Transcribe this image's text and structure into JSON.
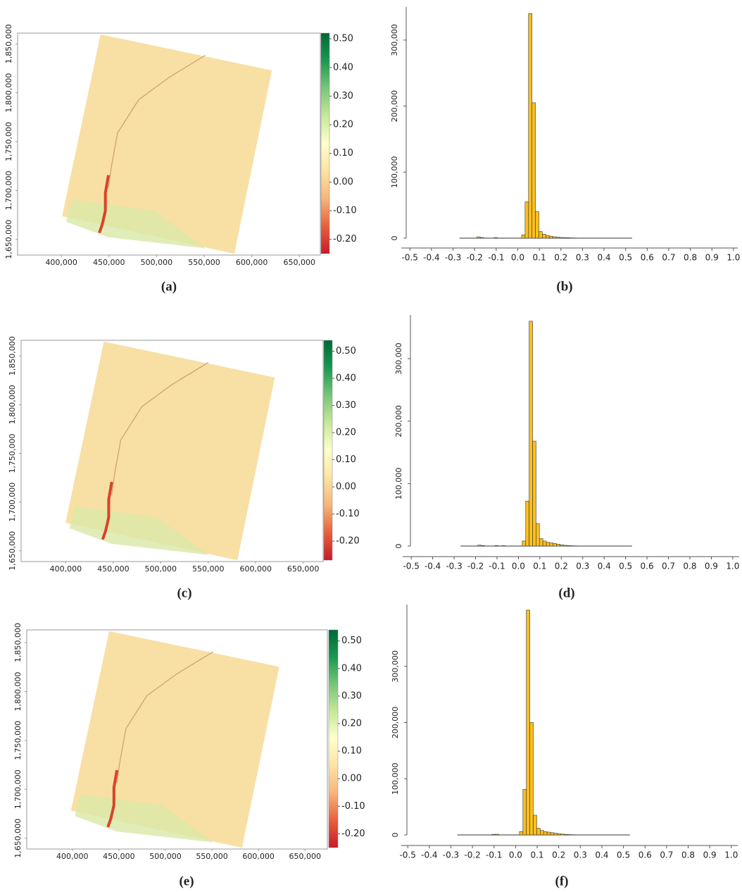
{
  "chart_data": [
    {
      "type": "map",
      "label": "(a)",
      "xlim": [
        354000,
        672000
      ],
      "ylim": [
        1634000,
        1861000
      ],
      "xticks": [
        {
          "value": 400000,
          "label": "400,000"
        },
        {
          "value": 450000,
          "label": "450,000"
        },
        {
          "value": 500000,
          "label": "500,000"
        },
        {
          "value": 550000,
          "label": "550,000"
        },
        {
          "value": 600000,
          "label": "600,000"
        },
        {
          "value": 650000,
          "label": "650,000"
        }
      ],
      "yticks": [
        {
          "value": 1650000,
          "label": "1,650,000"
        },
        {
          "value": 1700000,
          "label": "1,700,000"
        },
        {
          "value": 1750000,
          "label": "1,750,000"
        },
        {
          "value": 1800000,
          "label": "1,800,000"
        },
        {
          "value": 1850000,
          "label": "1,850,000"
        }
      ],
      "clim": [
        -0.25,
        0.52
      ],
      "cticks": [
        {
          "value": -0.2,
          "label": "-0.20"
        },
        {
          "value": -0.1,
          "label": "-0.10"
        },
        {
          "value": 0,
          "label": "0.00"
        },
        {
          "value": 0.1,
          "label": "0.10"
        },
        {
          "value": 0.2,
          "label": "0.20"
        },
        {
          "value": 0.3,
          "label": "0.30"
        },
        {
          "value": 0.4,
          "label": "0.40"
        },
        {
          "value": 0.5,
          "label": "0.50"
        }
      ],
      "colormap": [
        "#c51b2b",
        "#e8603c",
        "#f6b57a",
        "#fde3a4",
        "#ffffcc",
        "#c7e89a",
        "#78c679",
        "#1a9850",
        "#006837"
      ]
    },
    {
      "type": "histogram",
      "label": "(b)",
      "color": "#fcbf1e",
      "xlim": [
        -0.54,
        1.02
      ],
      "ylim": [
        0,
        350000
      ],
      "xticks": [
        -0.5,
        -0.4,
        -0.3,
        -0.2,
        -0.1,
        {
          "value": 0,
          "label": "0.0"
        },
        0.1,
        0.2,
        0.3,
        0.4,
        0.5,
        0.6,
        0.7,
        0.8,
        0.9,
        {
          "value": 1,
          "label": "1.0"
        }
      ],
      "yticks": [
        0,
        {
          "value": 100000,
          "label": "100,000"
        },
        {
          "value": 200000,
          "label": "200,000"
        },
        {
          "value": 300000,
          "label": "300,000"
        }
      ],
      "bins": [
        -0.27,
        -0.254,
        -0.238,
        -0.222,
        -0.206,
        -0.19,
        -0.174,
        -0.158,
        -0.142,
        -0.126,
        -0.11,
        -0.094,
        -0.078,
        -0.062,
        -0.046,
        -0.03,
        -0.014,
        0.002,
        0.018,
        0.034,
        0.05,
        0.066,
        0.082,
        0.098,
        0.114,
        0.13,
        0.146,
        0.162,
        0.178,
        0.194,
        0.21,
        0.226,
        0.242,
        0.258,
        0.274,
        0.29,
        0.306,
        0.322,
        0.338,
        0.354,
        0.37,
        0.386,
        0.402,
        0.418,
        0.434,
        0.45,
        0.466,
        0.482,
        0.498,
        0.514,
        0.53
      ],
      "values": [
        0,
        0,
        0,
        0,
        0,
        2000,
        1000,
        0,
        0,
        0,
        800,
        0,
        0,
        0,
        0,
        0,
        0,
        0,
        5000,
        55000,
        340000,
        205000,
        40000,
        10000,
        6000,
        4000,
        3000,
        2000,
        1500,
        1000,
        800,
        600,
        400,
        300,
        200,
        0,
        0,
        0,
        0,
        0,
        0,
        0,
        0,
        0,
        0,
        0,
        0,
        0,
        0,
        0
      ]
    },
    {
      "type": "map",
      "label": "(c)",
      "xlim": [
        353000,
        671000
      ],
      "ylim": [
        1639000,
        1866000
      ],
      "xticks": [
        {
          "value": 400000,
          "label": "400,000"
        },
        {
          "value": 450000,
          "label": "450,000"
        },
        {
          "value": 500000,
          "label": "500,000"
        },
        {
          "value": 550000,
          "label": "550,000"
        },
        {
          "value": 600000,
          "label": "600,000"
        },
        {
          "value": 650000,
          "label": "650,000"
        }
      ],
      "yticks": [
        {
          "value": 1650000,
          "label": "1,650,000"
        },
        {
          "value": 1700000,
          "label": "1,700,000"
        },
        {
          "value": 1750000,
          "label": "1,750,000"
        },
        {
          "value": 1800000,
          "label": "1,800,000"
        },
        {
          "value": 1850000,
          "label": "1,850,000"
        }
      ],
      "clim": [
        -0.27,
        0.54
      ],
      "cticks": [
        {
          "value": -0.2,
          "label": "-0.20"
        },
        {
          "value": -0.1,
          "label": "-0.10"
        },
        {
          "value": 0,
          "label": "0.00"
        },
        {
          "value": 0.1,
          "label": "0.10"
        },
        {
          "value": 0.2,
          "label": "0.20"
        },
        {
          "value": 0.3,
          "label": "0.30"
        },
        {
          "value": 0.4,
          "label": "0.40"
        },
        {
          "value": 0.5,
          "label": "0.50"
        }
      ],
      "colormap": [
        "#c51b2b",
        "#e8603c",
        "#f6b57a",
        "#fde3a4",
        "#ffffcc",
        "#c7e89a",
        "#78c679",
        "#1a9850",
        "#006837"
      ]
    },
    {
      "type": "histogram",
      "label": "(d)",
      "color": "#fcbf1e",
      "xlim": [
        -0.54,
        1.03
      ],
      "ylim": [
        0,
        370000
      ],
      "xticks": [
        -0.5,
        -0.4,
        -0.3,
        -0.2,
        -0.1,
        {
          "value": 0,
          "label": "0.0"
        },
        0.1,
        0.2,
        0.3,
        0.4,
        0.5,
        0.6,
        0.7,
        0.8,
        0.9,
        {
          "value": 1,
          "label": "1.0"
        }
      ],
      "yticks": [
        0,
        {
          "value": 100000,
          "label": "100,000"
        },
        {
          "value": 200000,
          "label": "200,000"
        },
        {
          "value": 300000,
          "label": "300,000"
        }
      ],
      "bins": [
        -0.27,
        -0.254,
        -0.238,
        -0.222,
        -0.206,
        -0.19,
        -0.174,
        -0.158,
        -0.142,
        -0.126,
        -0.11,
        -0.094,
        -0.078,
        -0.062,
        -0.046,
        -0.03,
        -0.014,
        0.002,
        0.018,
        0.034,
        0.05,
        0.066,
        0.082,
        0.098,
        0.114,
        0.13,
        0.146,
        0.162,
        0.178,
        0.194,
        0.21,
        0.226,
        0.242,
        0.258,
        0.274,
        0.29,
        0.306,
        0.322,
        0.338,
        0.354,
        0.37,
        0.386,
        0.402,
        0.418,
        0.434,
        0.45,
        0.466,
        0.482,
        0.498,
        0.514,
        0.53
      ],
      "values": [
        0,
        0,
        0,
        0,
        0,
        1500,
        800,
        0,
        0,
        0,
        700,
        0,
        600,
        0,
        0,
        0,
        0,
        0,
        8000,
        72000,
        360000,
        168000,
        36000,
        12000,
        8000,
        6000,
        5000,
        4000,
        3000,
        2000,
        1200,
        800,
        500,
        300,
        0,
        0,
        0,
        0,
        0,
        0,
        0,
        0,
        0,
        0,
        0,
        0,
        0,
        0,
        0,
        0
      ]
    },
    {
      "type": "map",
      "label": "(e)",
      "xlim": [
        351000,
        674000
      ],
      "ylim": [
        1639000,
        1863000
      ],
      "xticks": [
        {
          "value": 400000,
          "label": "400,000"
        },
        {
          "value": 450000,
          "label": "450,000"
        },
        {
          "value": 500000,
          "label": "500,000"
        },
        {
          "value": 550000,
          "label": "550,000"
        },
        {
          "value": 600000,
          "label": "600,000"
        },
        {
          "value": 650000,
          "label": "650,000"
        }
      ],
      "yticks": [
        {
          "value": 1650000,
          "label": "1,650,000"
        },
        {
          "value": 1700000,
          "label": "1,700,000"
        },
        {
          "value": 1750000,
          "label": "1,750,000"
        },
        {
          "value": 1800000,
          "label": "1,800,000"
        },
        {
          "value": 1850000,
          "label": "1,850,000"
        }
      ],
      "clim": [
        -0.25,
        0.54
      ],
      "cticks": [
        {
          "value": -0.2,
          "label": "-0.20"
        },
        {
          "value": -0.1,
          "label": "-0.10"
        },
        {
          "value": 0,
          "label": "0.00"
        },
        {
          "value": 0.1,
          "label": "0.10"
        },
        {
          "value": 0.2,
          "label": "0.20"
        },
        {
          "value": 0.3,
          "label": "0.30"
        },
        {
          "value": 0.4,
          "label": "0.40"
        },
        {
          "value": 0.5,
          "label": "0.50"
        }
      ],
      "colormap": [
        "#c51b2b",
        "#e8603c",
        "#f6b57a",
        "#fde3a4",
        "#ffffcc",
        "#c7e89a",
        "#78c679",
        "#1a9850",
        "#006837"
      ]
    },
    {
      "type": "histogram",
      "label": "(f)",
      "color": "#fcbf1e",
      "xlim": [
        -0.53,
        1.03
      ],
      "ylim": [
        0,
        410000
      ],
      "xticks": [
        -0.5,
        -0.4,
        -0.3,
        -0.2,
        -0.1,
        {
          "value": 0,
          "label": "0.0"
        },
        0.1,
        0.2,
        0.3,
        0.4,
        0.5,
        0.6,
        0.7,
        0.8,
        0.9,
        {
          "value": 1,
          "label": "1.0"
        }
      ],
      "yticks": [
        0,
        {
          "value": 100000,
          "label": "100,000"
        },
        {
          "value": 200000,
          "label": "200,000"
        },
        {
          "value": 300000,
          "label": "300,000"
        }
      ],
      "bins": [
        -0.27,
        -0.254,
        -0.238,
        -0.222,
        -0.206,
        -0.19,
        -0.174,
        -0.158,
        -0.142,
        -0.126,
        -0.11,
        -0.094,
        -0.078,
        -0.062,
        -0.046,
        -0.03,
        -0.014,
        0.002,
        0.018,
        0.034,
        0.05,
        0.066,
        0.082,
        0.098,
        0.114,
        0.13,
        0.146,
        0.162,
        0.178,
        0.194,
        0.21,
        0.226,
        0.242,
        0.258,
        0.274,
        0.29,
        0.306,
        0.322,
        0.338,
        0.354,
        0.37,
        0.386,
        0.402,
        0.418,
        0.434,
        0.45,
        0.466,
        0.482,
        0.498,
        0.514,
        0.53
      ],
      "values": [
        0,
        0,
        0,
        0,
        0,
        0,
        0,
        0,
        0,
        0,
        1000,
        1200,
        0,
        0,
        0,
        0,
        0,
        0,
        6000,
        81000,
        400000,
        200000,
        35000,
        12000,
        8000,
        6000,
        5000,
        4000,
        3000,
        2000,
        1500,
        1000,
        600,
        400,
        200,
        0,
        0,
        0,
        0,
        0,
        0,
        0,
        0,
        0,
        0,
        0,
        0,
        0,
        0,
        0
      ]
    }
  ]
}
